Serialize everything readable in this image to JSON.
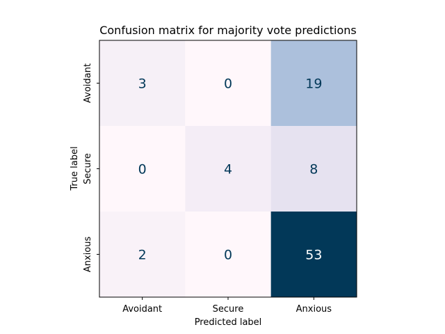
{
  "chart_data": {
    "type": "heatmap",
    "title": "Confusion matrix for majority vote predictions",
    "xlabel": "Predicted label",
    "ylabel": "True label",
    "x_categories": [
      "Avoidant",
      "Secure",
      "Anxious"
    ],
    "y_categories": [
      "Avoidant",
      "Secure",
      "Anxious"
    ],
    "values": [
      [
        3,
        0,
        19
      ],
      [
        0,
        4,
        8
      ],
      [
        2,
        0,
        53
      ]
    ],
    "colormap": "PuBu",
    "vmin": 0,
    "vmax": 53,
    "colorbar": false,
    "grid": false,
    "colors": {
      "low": "#fff7fb",
      "high": "#023858",
      "text_dark": "#023858",
      "text_light": "#ffffff"
    }
  }
}
